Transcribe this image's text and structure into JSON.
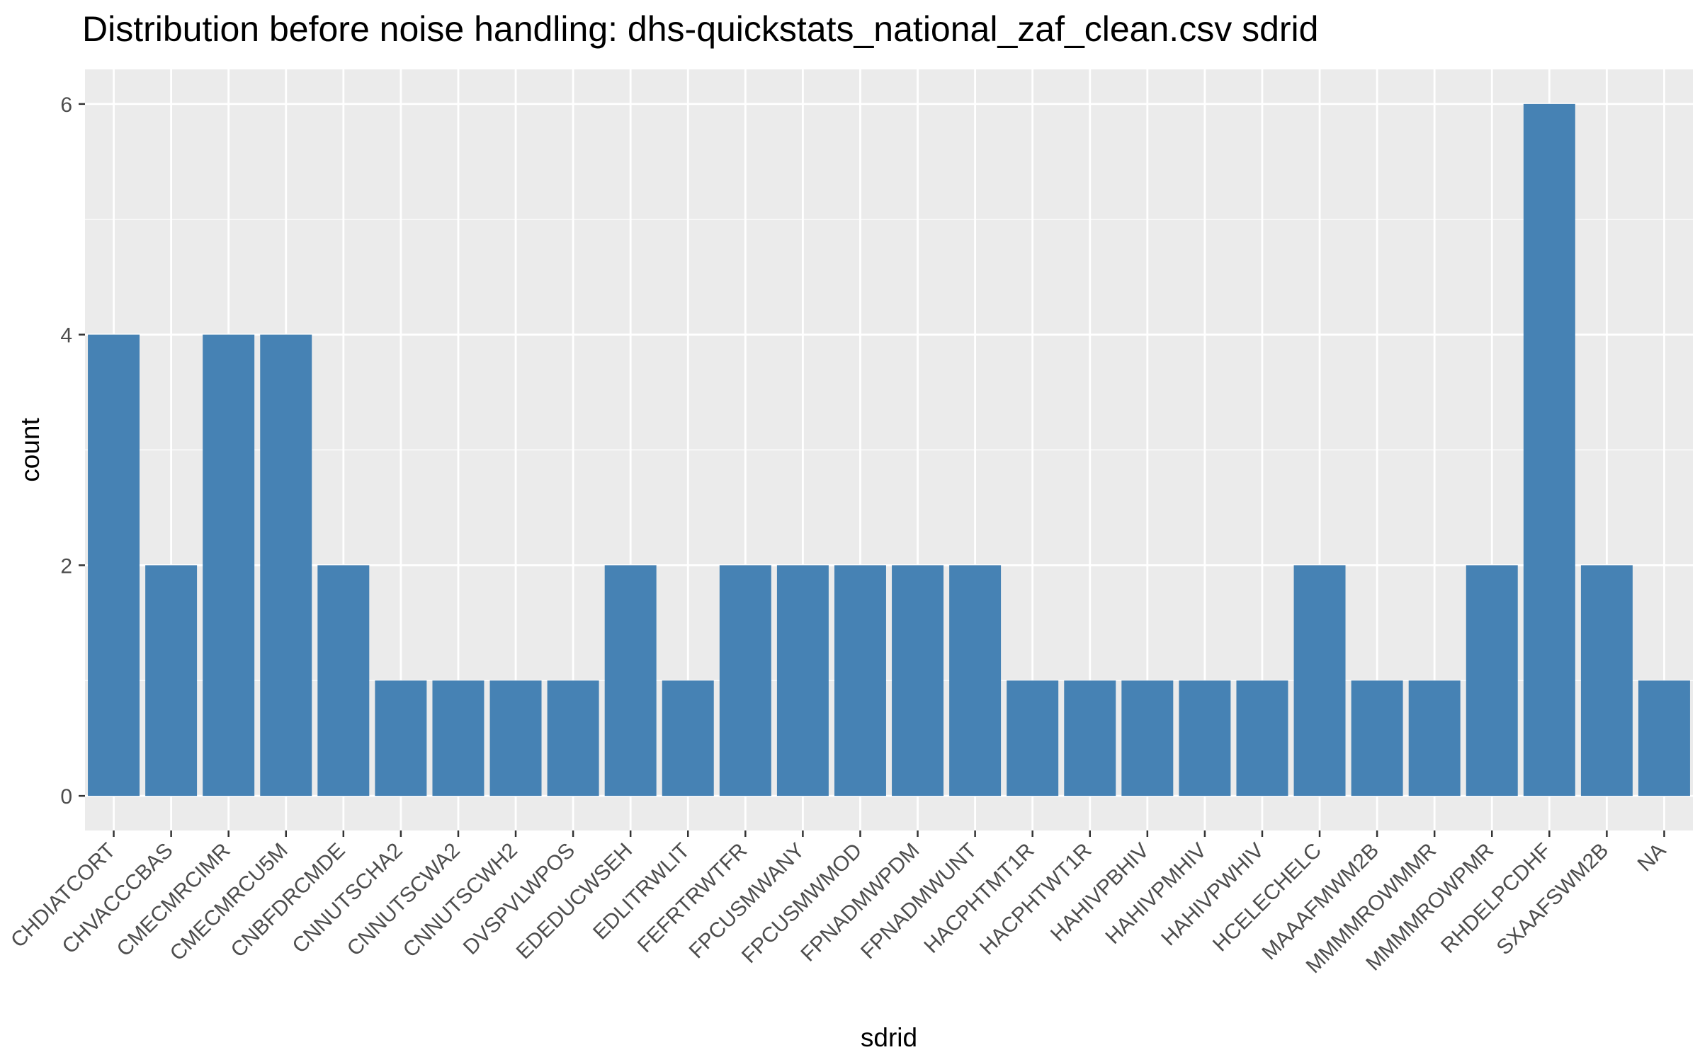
{
  "chart_data": {
    "type": "bar",
    "title": "Distribution before noise handling: dhs-quickstats_national_zaf_clean.csv sdrid",
    "xlabel": "sdrid",
    "ylabel": "count",
    "categories": [
      "CHDIATCORT",
      "CHVACCCBAS",
      "CMECMRCIMR",
      "CMECMRCU5M",
      "CNBFDRCMDE",
      "CNNUTSCHA2",
      "CNNUTSCWA2",
      "CNNUTSCWH2",
      "DVSPVLWPOS",
      "EDEDUCWSEH",
      "EDLITRWLIT",
      "FEFRTRWTFR",
      "FPCUSMWANY",
      "FPCUSMWMOD",
      "FPNADMWPDM",
      "FPNADMWUNT",
      "HACPHTMT1R",
      "HACPHTWT1R",
      "HAHIVPBHIV",
      "HAHIVPMHIV",
      "HAHIVPWHIV",
      "HCELECHELC",
      "MAAAFMWM2B",
      "MMMMROWMMR",
      "MMMMROWPMR",
      "RHDELPCDHF",
      "SXAAFSWM2B",
      "NA"
    ],
    "values": [
      4,
      2,
      4,
      4,
      2,
      1,
      1,
      1,
      1,
      2,
      1,
      2,
      2,
      2,
      2,
      2,
      1,
      1,
      1,
      1,
      1,
      2,
      1,
      1,
      2,
      6,
      2,
      1
    ],
    "yticks": [
      0,
      2,
      4,
      6
    ],
    "ylim": [
      -0.3,
      6.3
    ],
    "bar_color": "#4682B4",
    "panel_color": "#EBEBEB",
    "grid": true
  }
}
